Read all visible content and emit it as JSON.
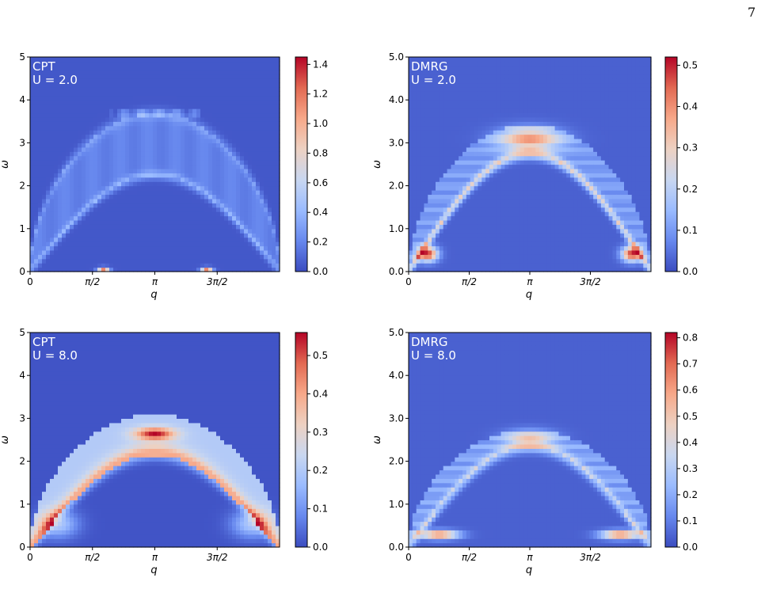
{
  "page": {
    "number": "7"
  },
  "colormap": {
    "name": "coolwarm",
    "stops": [
      "#3b4cc0",
      "#6788ee",
      "#9abbff",
      "#c9d7f0",
      "#edd1c2",
      "#f7a889",
      "#e26952",
      "#b40426"
    ]
  },
  "chart_data": [
    {
      "type": "heatmap",
      "method": "CPT",
      "title_lines": [
        "CPT",
        "U = 2.0"
      ],
      "xlabel": "q",
      "ylabel": "ω",
      "xlim": [
        0,
        6.2832
      ],
      "ylim": [
        0,
        5
      ],
      "x_ticks": [
        0,
        1.5708,
        3.1416,
        4.7124
      ],
      "x_tick_labels": [
        "0",
        "π/2",
        "π",
        "3π/2"
      ],
      "y_ticks": [
        0,
        1,
        2,
        3,
        4,
        5
      ],
      "y_tick_labels": [
        "0",
        "1",
        "2",
        "3",
        "4",
        "5"
      ],
      "colorbar": {
        "min": 0.0,
        "max": 1.45,
        "ticks": [
          0.0,
          0.2,
          0.4,
          0.6,
          0.8,
          1.0,
          1.2,
          1.4
        ],
        "tick_labels": [
          "0.0",
          "0.2",
          "0.4",
          "0.6",
          "0.8",
          "1.0",
          "1.2",
          "1.4"
        ]
      },
      "features": {
        "spinon_upper_edge": 3.7,
        "lower_band_top_at_pi": 2.2,
        "peak_points": [
          [
            1.85,
            0.05
          ],
          [
            4.45,
            0.05
          ]
        ]
      }
    },
    {
      "type": "heatmap",
      "method": "DMRG",
      "title_lines": [
        "DMRG",
        "U = 2.0"
      ],
      "xlabel": "q",
      "ylabel": "ω",
      "xlim": [
        0,
        6.2832
      ],
      "ylim": [
        0,
        5
      ],
      "x_ticks": [
        0,
        1.5708,
        3.1416,
        4.7124
      ],
      "x_tick_labels": [
        "0",
        "π/2",
        "π",
        "3π/2"
      ],
      "y_ticks": [
        0,
        1,
        2,
        3,
        4,
        5
      ],
      "y_tick_labels": [
        "0.0",
        "1.0",
        "2.0",
        "3.0",
        "4.0",
        "5.0"
      ],
      "colorbar": {
        "min": 0.0,
        "max": 0.52,
        "ticks": [
          0.0,
          0.1,
          0.2,
          0.3,
          0.4,
          0.5
        ],
        "tick_labels": [
          "0.0",
          "0.1",
          "0.2",
          "0.3",
          "0.4",
          "0.5"
        ]
      },
      "features": {
        "spinon_upper_edge": 3.35,
        "lower_band_top_at_pi": 2.7,
        "peak_points": [
          [
            0.5,
            0.45
          ],
          [
            5.8,
            0.45
          ]
        ]
      }
    },
    {
      "type": "heatmap",
      "method": "CPT",
      "title_lines": [
        "CPT",
        "U = 8.0"
      ],
      "xlabel": "q",
      "ylabel": "ω",
      "xlim": [
        0,
        6.2832
      ],
      "ylim": [
        0,
        5
      ],
      "x_ticks": [
        0,
        1.5708,
        3.1416,
        4.7124
      ],
      "x_tick_labels": [
        "0",
        "π/2",
        "π",
        "3π/2"
      ],
      "y_ticks": [
        0,
        1,
        2,
        3,
        4,
        5
      ],
      "y_tick_labels": [
        "0",
        "1",
        "2",
        "3",
        "4",
        "5"
      ],
      "colorbar": {
        "min": 0.0,
        "max": 0.56,
        "ticks": [
          0.0,
          0.1,
          0.2,
          0.3,
          0.4,
          0.5
        ],
        "tick_labels": [
          "0.0",
          "0.1",
          "0.2",
          "0.3",
          "0.4",
          "0.5"
        ]
      },
      "features": {
        "spinon_upper_edge": 3.1,
        "lower_band_top_at_pi": 2.2,
        "peak_points": [
          [
            3.14,
            2.65
          ]
        ]
      }
    },
    {
      "type": "heatmap",
      "method": "DMRG",
      "title_lines": [
        "DMRG",
        "U = 8.0"
      ],
      "xlabel": "q",
      "ylabel": "ω",
      "xlim": [
        0,
        6.2832
      ],
      "ylim": [
        0,
        5
      ],
      "x_ticks": [
        0,
        1.5708,
        3.1416,
        4.7124
      ],
      "x_tick_labels": [
        "0",
        "π/2",
        "π",
        "3π/2"
      ],
      "y_ticks": [
        0,
        1,
        2,
        3,
        4,
        5
      ],
      "y_tick_labels": [
        "0.0",
        "1.0",
        "2.0",
        "3.0",
        "4.0",
        "5.0"
      ],
      "colorbar": {
        "min": 0.0,
        "max": 0.82,
        "ticks": [
          0.0,
          0.1,
          0.2,
          0.3,
          0.4,
          0.5,
          0.6,
          0.7,
          0.8
        ],
        "tick_labels": [
          "0.0",
          "0.1",
          "0.2",
          "0.3",
          "0.4",
          "0.5",
          "0.6",
          "0.7",
          "0.8"
        ]
      },
      "features": {
        "spinon_upper_edge": 2.7,
        "lower_band_top_at_pi": 2.3,
        "peak_points": [
          [
            0.8,
            0.3
          ],
          [
            5.5,
            0.3
          ]
        ]
      }
    }
  ]
}
